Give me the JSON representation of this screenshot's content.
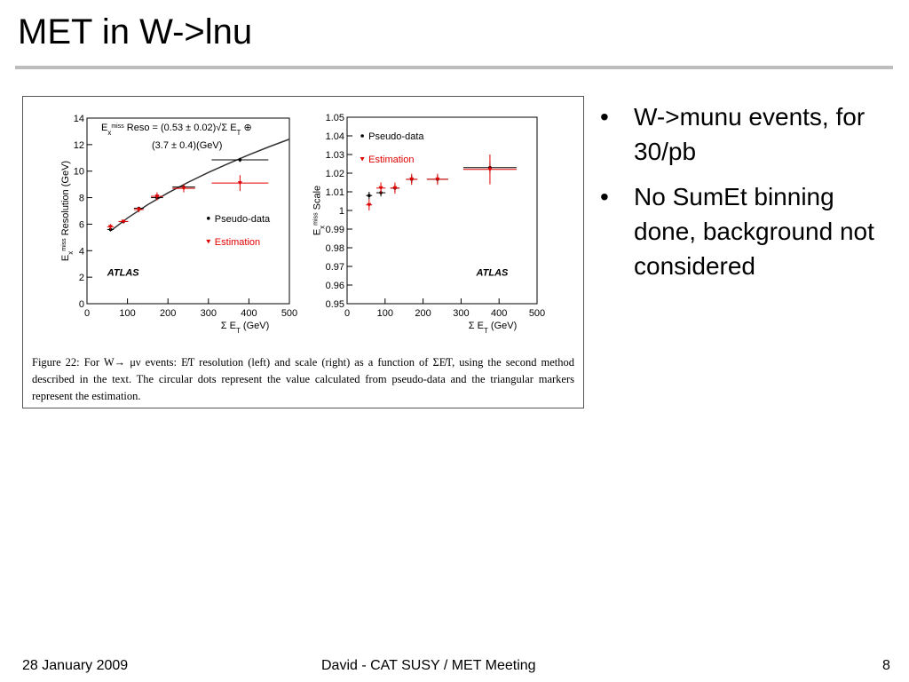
{
  "slide": {
    "title": "MET in W->lnu",
    "bullets": [
      "W->munu events, for 30/pb",
      "No SumEt binning done, background not considered"
    ],
    "footer": {
      "date": "28 January 2009",
      "center": "David - CAT SUSY / MET Meeting",
      "page": "8"
    },
    "figure_caption": "Figure 22: For W→ μν events: E̸T resolution (left) and scale (right) as a function of ΣE̸T, using the second method described in the text. The circular dots represent the value calculated from pseudo-data and the triangular markers represent the estimation."
  },
  "chart_data": [
    {
      "type": "scatter",
      "xlabel": [
        {
          "text": "Σ E"
        },
        {
          "text": "T",
          "sub": true
        },
        {
          "text": " (GeV)"
        }
      ],
      "ylabel": [
        {
          "text": "E"
        },
        {
          "text": "x",
          "sub": true
        },
        {
          "text": "miss",
          "sup": true
        },
        {
          "text": " Resolution (GeV)"
        }
      ],
      "annotation": [
        [
          {
            "text": "E"
          },
          {
            "text": "x",
            "sub": true
          },
          {
            "text": "miss",
            "sup": true
          },
          {
            "text": " Reso = (0.53 ± 0.02)√Σ E"
          },
          {
            "text": "T",
            "sub": true
          },
          {
            "text": " ⊕"
          }
        ],
        [
          {
            "text": "(3.7 ± 0.4)(GeV)"
          }
        ]
      ],
      "brand": "ATLAS",
      "brand_position": "lower left",
      "legend_position": "center right",
      "xlim": [
        0,
        500
      ],
      "xticks": [
        0,
        100,
        200,
        300,
        400,
        500
      ],
      "ylim": [
        0,
        14
      ],
      "yticks": [
        0,
        2,
        4,
        6,
        8,
        10,
        12,
        14
      ],
      "x": [
        58,
        90,
        128,
        173,
        239,
        378
      ],
      "x_errors": [
        8,
        12,
        12,
        15,
        28,
        70
      ],
      "series": [
        {
          "name": "Pseudo-data",
          "color": "#000000",
          "marker": "circle",
          "values": [
            5.6,
            6.2,
            7.2,
            8.0,
            8.8,
            10.85
          ],
          "errors": [
            0.15,
            0.1,
            0.1,
            0.15,
            0.15,
            0.15
          ]
        },
        {
          "name": "Estimation",
          "color": "#e00000",
          "marker": "triangle",
          "values": [
            5.8,
            6.2,
            7.1,
            8.1,
            8.7,
            9.1
          ],
          "errors": [
            0.2,
            0.15,
            0.2,
            0.3,
            0.3,
            0.6
          ]
        }
      ],
      "fit": {
        "color": "#333333",
        "x": [
          60,
          100,
          150,
          200,
          250,
          300,
          350,
          400,
          450,
          500
        ],
        "values": [
          5.53,
          6.46,
          7.47,
          8.36,
          9.16,
          9.9,
          10.58,
          11.23,
          11.84,
          12.41
        ]
      }
    },
    {
      "type": "scatter",
      "xlabel": [
        {
          "text": "Σ E"
        },
        {
          "text": "T",
          "sub": true
        },
        {
          "text": " (GeV)"
        }
      ],
      "ylabel": [
        {
          "text": "E"
        },
        {
          "text": "x",
          "sub": true
        },
        {
          "text": "miss",
          "sup": true
        },
        {
          "text": " Scale"
        }
      ],
      "brand": "ATLAS",
      "brand_position": "lower right",
      "legend_position": "upper left",
      "xlim": [
        0,
        500
      ],
      "xticks": [
        0,
        100,
        200,
        300,
        400,
        500
      ],
      "ylim": [
        0.95,
        1.05
      ],
      "yticks": [
        0.95,
        0.96,
        0.97,
        0.98,
        0.99,
        1,
        1.01,
        1.02,
        1.03,
        1.04,
        1.05
      ],
      "x": [
        58,
        89,
        126,
        170,
        238,
        376
      ],
      "x_errors": [
        8,
        12,
        12,
        15,
        28,
        70
      ],
      "series": [
        {
          "name": "Pseudo-data",
          "color": "#000000",
          "marker": "circle",
          "values": [
            1.008,
            1.0095,
            1.012,
            1.0167,
            1.0167,
            1.023
          ],
          "errors": [
            0.002,
            0.002,
            0.002,
            0.002,
            0.002,
            0.003
          ]
        },
        {
          "name": "Estimation",
          "color": "#e00000",
          "marker": "triangle",
          "values": [
            1.003,
            1.012,
            1.012,
            1.0167,
            1.0167,
            1.022
          ],
          "errors": [
            0.003,
            0.003,
            0.003,
            0.003,
            0.003,
            0.008
          ]
        }
      ]
    }
  ]
}
